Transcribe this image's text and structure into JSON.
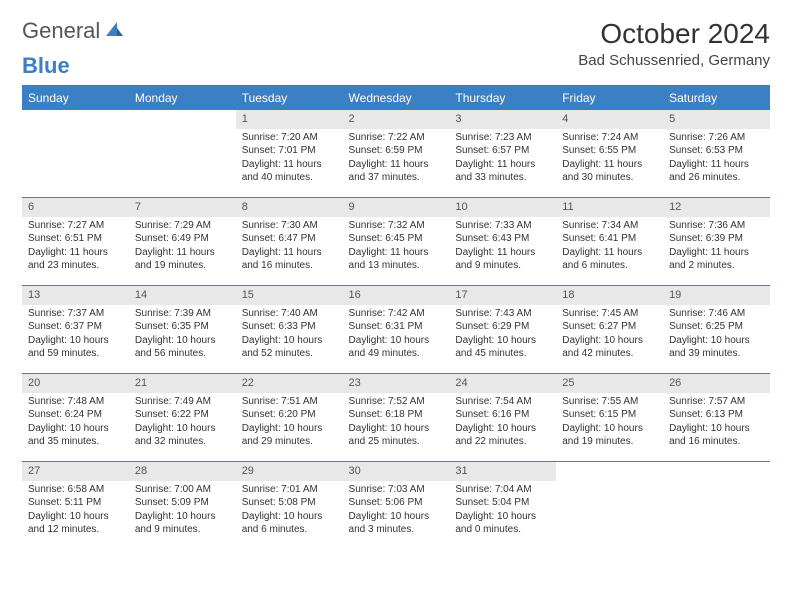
{
  "brand": {
    "part1": "General",
    "part2": "Blue"
  },
  "title": "October 2024",
  "location": "Bad Schussenried, Germany",
  "colors": {
    "accent": "#3b7fc4",
    "header_bg": "#3b7fc4",
    "header_text": "#ffffff",
    "daynum_bg": "#e8e8e8",
    "text": "#333333",
    "background": "#ffffff"
  },
  "weekdays": [
    "Sunday",
    "Monday",
    "Tuesday",
    "Wednesday",
    "Thursday",
    "Friday",
    "Saturday"
  ],
  "layout": {
    "rows": 5,
    "cols": 7,
    "first_day_col": 2,
    "days_in_month": 31
  },
  "days": {
    "1": {
      "sunrise": "7:20 AM",
      "sunset": "7:01 PM",
      "daylight": "11 hours and 40 minutes."
    },
    "2": {
      "sunrise": "7:22 AM",
      "sunset": "6:59 PM",
      "daylight": "11 hours and 37 minutes."
    },
    "3": {
      "sunrise": "7:23 AM",
      "sunset": "6:57 PM",
      "daylight": "11 hours and 33 minutes."
    },
    "4": {
      "sunrise": "7:24 AM",
      "sunset": "6:55 PM",
      "daylight": "11 hours and 30 minutes."
    },
    "5": {
      "sunrise": "7:26 AM",
      "sunset": "6:53 PM",
      "daylight": "11 hours and 26 minutes."
    },
    "6": {
      "sunrise": "7:27 AM",
      "sunset": "6:51 PM",
      "daylight": "11 hours and 23 minutes."
    },
    "7": {
      "sunrise": "7:29 AM",
      "sunset": "6:49 PM",
      "daylight": "11 hours and 19 minutes."
    },
    "8": {
      "sunrise": "7:30 AM",
      "sunset": "6:47 PM",
      "daylight": "11 hours and 16 minutes."
    },
    "9": {
      "sunrise": "7:32 AM",
      "sunset": "6:45 PM",
      "daylight": "11 hours and 13 minutes."
    },
    "10": {
      "sunrise": "7:33 AM",
      "sunset": "6:43 PM",
      "daylight": "11 hours and 9 minutes."
    },
    "11": {
      "sunrise": "7:34 AM",
      "sunset": "6:41 PM",
      "daylight": "11 hours and 6 minutes."
    },
    "12": {
      "sunrise": "7:36 AM",
      "sunset": "6:39 PM",
      "daylight": "11 hours and 2 minutes."
    },
    "13": {
      "sunrise": "7:37 AM",
      "sunset": "6:37 PM",
      "daylight": "10 hours and 59 minutes."
    },
    "14": {
      "sunrise": "7:39 AM",
      "sunset": "6:35 PM",
      "daylight": "10 hours and 56 minutes."
    },
    "15": {
      "sunrise": "7:40 AM",
      "sunset": "6:33 PM",
      "daylight": "10 hours and 52 minutes."
    },
    "16": {
      "sunrise": "7:42 AM",
      "sunset": "6:31 PM",
      "daylight": "10 hours and 49 minutes."
    },
    "17": {
      "sunrise": "7:43 AM",
      "sunset": "6:29 PM",
      "daylight": "10 hours and 45 minutes."
    },
    "18": {
      "sunrise": "7:45 AM",
      "sunset": "6:27 PM",
      "daylight": "10 hours and 42 minutes."
    },
    "19": {
      "sunrise": "7:46 AM",
      "sunset": "6:25 PM",
      "daylight": "10 hours and 39 minutes."
    },
    "20": {
      "sunrise": "7:48 AM",
      "sunset": "6:24 PM",
      "daylight": "10 hours and 35 minutes."
    },
    "21": {
      "sunrise": "7:49 AM",
      "sunset": "6:22 PM",
      "daylight": "10 hours and 32 minutes."
    },
    "22": {
      "sunrise": "7:51 AM",
      "sunset": "6:20 PM",
      "daylight": "10 hours and 29 minutes."
    },
    "23": {
      "sunrise": "7:52 AM",
      "sunset": "6:18 PM",
      "daylight": "10 hours and 25 minutes."
    },
    "24": {
      "sunrise": "7:54 AM",
      "sunset": "6:16 PM",
      "daylight": "10 hours and 22 minutes."
    },
    "25": {
      "sunrise": "7:55 AM",
      "sunset": "6:15 PM",
      "daylight": "10 hours and 19 minutes."
    },
    "26": {
      "sunrise": "7:57 AM",
      "sunset": "6:13 PM",
      "daylight": "10 hours and 16 minutes."
    },
    "27": {
      "sunrise": "6:58 AM",
      "sunset": "5:11 PM",
      "daylight": "10 hours and 12 minutes."
    },
    "28": {
      "sunrise": "7:00 AM",
      "sunset": "5:09 PM",
      "daylight": "10 hours and 9 minutes."
    },
    "29": {
      "sunrise": "7:01 AM",
      "sunset": "5:08 PM",
      "daylight": "10 hours and 6 minutes."
    },
    "30": {
      "sunrise": "7:03 AM",
      "sunset": "5:06 PM",
      "daylight": "10 hours and 3 minutes."
    },
    "31": {
      "sunrise": "7:04 AM",
      "sunset": "5:04 PM",
      "daylight": "10 hours and 0 minutes."
    }
  },
  "labels": {
    "sunrise_prefix": "Sunrise: ",
    "sunset_prefix": "Sunset: ",
    "daylight_prefix": "Daylight: "
  }
}
